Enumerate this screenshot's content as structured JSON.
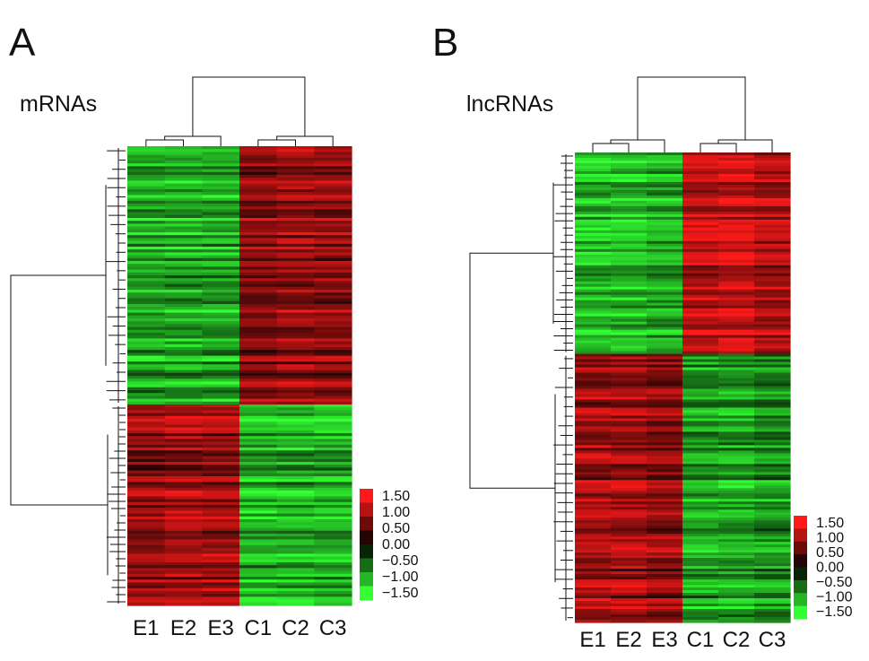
{
  "figure": {
    "panels": [
      {
        "letter": "A",
        "title": "mRNAs"
      },
      {
        "letter": "B",
        "title": "lncRNAs"
      }
    ]
  },
  "chart_data": [
    {
      "type": "heatmap",
      "title": "mRNAs",
      "columns": [
        "E1",
        "E2",
        "E3",
        "C1",
        "C2",
        "C3"
      ],
      "row_groups": [
        {
          "rows": 90,
          "pattern": [
            -1.0,
            -1.0,
            -1.0,
            0.8,
            0.9,
            0.85
          ]
        },
        {
          "rows": 70,
          "pattern": [
            0.8,
            0.9,
            0.9,
            -1.0,
            -1.0,
            -1.0
          ]
        }
      ],
      "dendrogram": {
        "columns": true,
        "rows": true
      },
      "color_scale": {
        "low": "#33ff33",
        "mid": "#000000",
        "high": "#ff1a1a"
      },
      "legend": {
        "ticks": [
          "1.50",
          "1.00",
          "0.50",
          "0.00",
          "−0.50",
          "−1.00",
          "−1.50"
        ],
        "range": [
          -1.5,
          1.5
        ],
        "position": "bottom-right"
      }
    },
    {
      "type": "heatmap",
      "title": "lncRNAs",
      "columns": [
        "E1",
        "E2",
        "E3",
        "C1",
        "C2",
        "C3"
      ],
      "row_groups": [
        {
          "rows": 75,
          "pattern": [
            -1.1,
            -1.1,
            -1.0,
            1.1,
            1.2,
            1.0
          ]
        },
        {
          "rows": 100,
          "pattern": [
            0.9,
            0.9,
            0.8,
            -0.9,
            -0.9,
            -0.8
          ]
        }
      ],
      "dendrogram": {
        "columns": true,
        "rows": true
      },
      "color_scale": {
        "low": "#33ff33",
        "mid": "#000000",
        "high": "#ff1a1a"
      },
      "legend": {
        "ticks": [
          "1.50",
          "1.00",
          "0.50",
          "0.00",
          "−0.50",
          "−1.00",
          "−1.50"
        ],
        "range": [
          -1.5,
          1.5
        ],
        "position": "bottom-right"
      }
    }
  ],
  "colors": {
    "high": "#ff1a1a",
    "mid": "#000000",
    "low": "#33ff33",
    "line": "#111111"
  }
}
